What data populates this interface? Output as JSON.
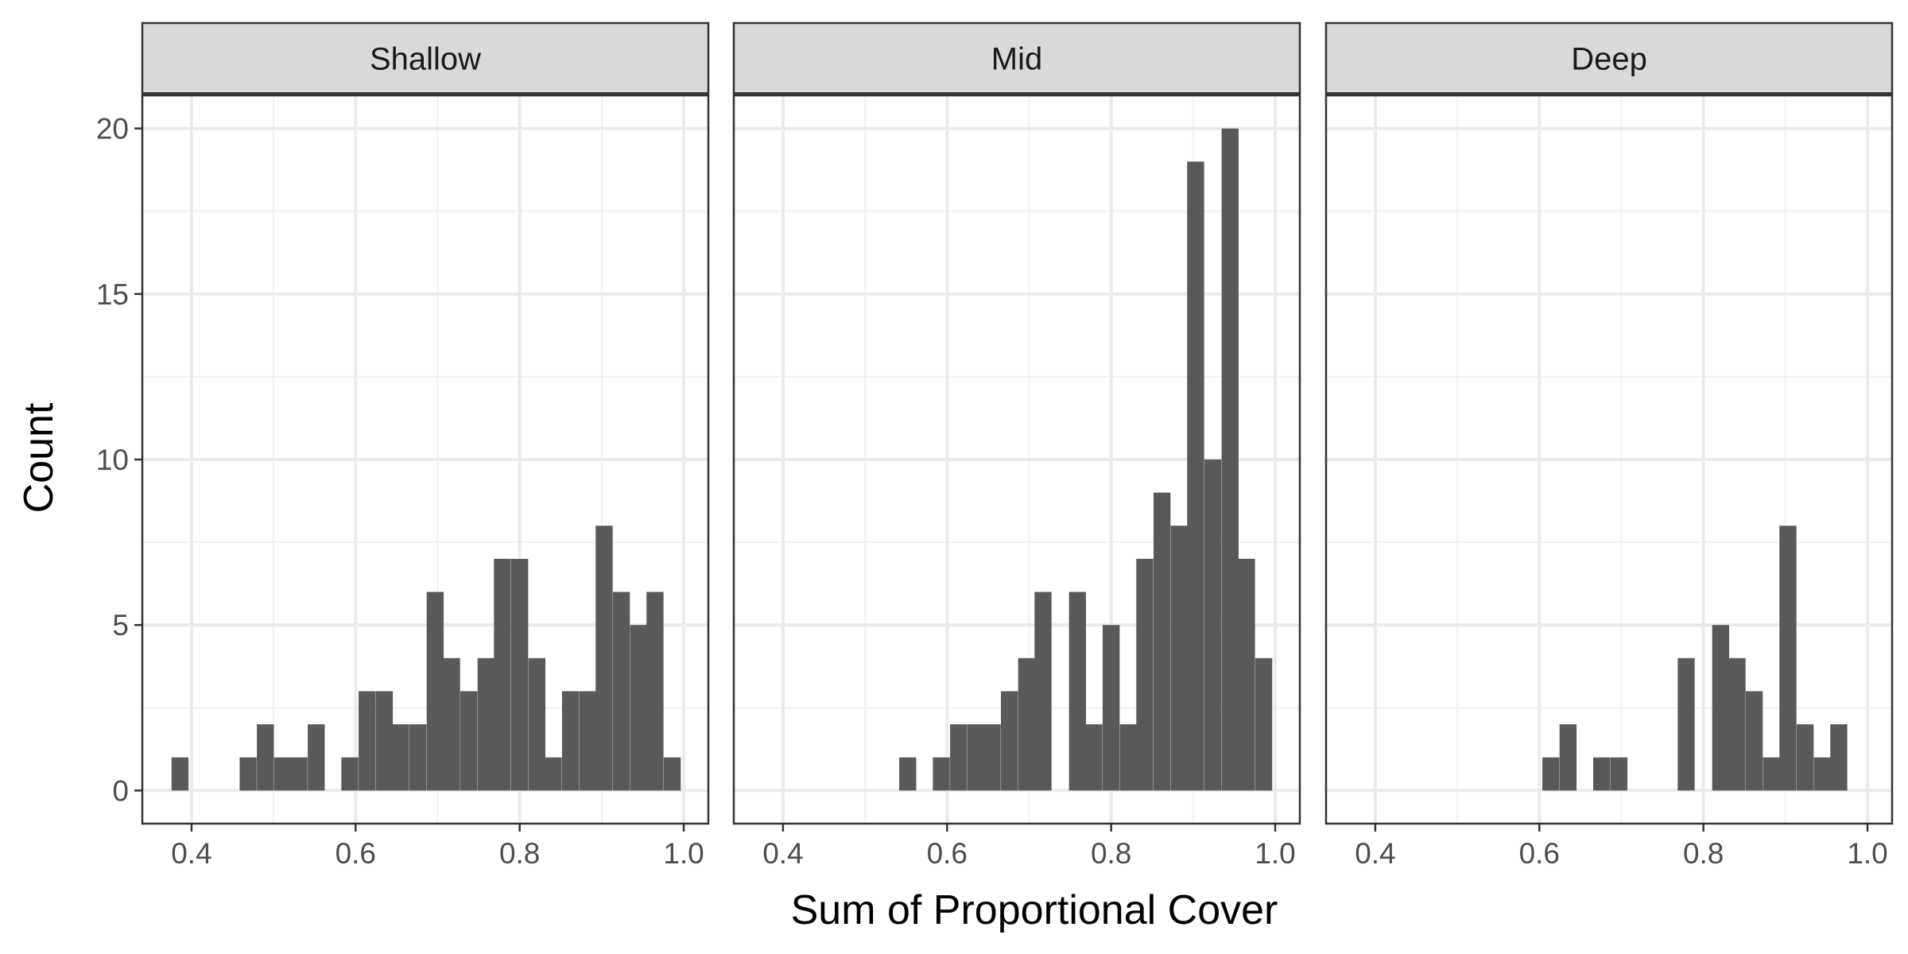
{
  "chart_data": {
    "type": "bar",
    "xlabel": "Sum of Proportional Cover",
    "ylabel": "Count",
    "x_range": [
      0.34,
      1.03
    ],
    "y_range": [
      -1,
      21
    ],
    "x_ticks": [
      0.4,
      0.6,
      0.8,
      1.0
    ],
    "x_tick_labels": [
      "0.4",
      "0.6",
      "0.8",
      "1.0"
    ],
    "y_ticks": [
      0,
      5,
      10,
      15,
      20
    ],
    "y_tick_labels": [
      "0",
      "5",
      "10",
      "15",
      "20"
    ],
    "grid": true,
    "bar_color": "#595959",
    "bin_width": 0.0207,
    "panels": [
      {
        "name": "Shallow",
        "bins": [
          {
            "x": 0.386,
            "count": 1
          },
          {
            "x": 0.469,
            "count": 1
          },
          {
            "x": 0.49,
            "count": 2
          },
          {
            "x": 0.511,
            "count": 1
          },
          {
            "x": 0.531,
            "count": 1
          },
          {
            "x": 0.552,
            "count": 2
          },
          {
            "x": 0.593,
            "count": 1
          },
          {
            "x": 0.614,
            "count": 3
          },
          {
            "x": 0.635,
            "count": 3
          },
          {
            "x": 0.655,
            "count": 2
          },
          {
            "x": 0.676,
            "count": 2
          },
          {
            "x": 0.697,
            "count": 6
          },
          {
            "x": 0.717,
            "count": 4
          },
          {
            "x": 0.738,
            "count": 3
          },
          {
            "x": 0.759,
            "count": 4
          },
          {
            "x": 0.779,
            "count": 7
          },
          {
            "x": 0.8,
            "count": 7
          },
          {
            "x": 0.821,
            "count": 4
          },
          {
            "x": 0.841,
            "count": 1
          },
          {
            "x": 0.862,
            "count": 3
          },
          {
            "x": 0.883,
            "count": 3
          },
          {
            "x": 0.903,
            "count": 8
          },
          {
            "x": 0.924,
            "count": 6
          },
          {
            "x": 0.945,
            "count": 5
          },
          {
            "x": 0.965,
            "count": 6
          },
          {
            "x": 0.986,
            "count": 1
          }
        ]
      },
      {
        "name": "Mid",
        "bins": [
          {
            "x": 0.552,
            "count": 1
          },
          {
            "x": 0.593,
            "count": 1
          },
          {
            "x": 0.614,
            "count": 2
          },
          {
            "x": 0.635,
            "count": 2
          },
          {
            "x": 0.655,
            "count": 2
          },
          {
            "x": 0.676,
            "count": 3
          },
          {
            "x": 0.697,
            "count": 4
          },
          {
            "x": 0.717,
            "count": 6
          },
          {
            "x": 0.759,
            "count": 6
          },
          {
            "x": 0.779,
            "count": 2
          },
          {
            "x": 0.8,
            "count": 5
          },
          {
            "x": 0.821,
            "count": 2
          },
          {
            "x": 0.841,
            "count": 7
          },
          {
            "x": 0.862,
            "count": 9
          },
          {
            "x": 0.883,
            "count": 8
          },
          {
            "x": 0.903,
            "count": 19
          },
          {
            "x": 0.924,
            "count": 10
          },
          {
            "x": 0.945,
            "count": 20
          },
          {
            "x": 0.965,
            "count": 7
          },
          {
            "x": 0.986,
            "count": 4
          }
        ]
      },
      {
        "name": "Deep",
        "bins": [
          {
            "x": 0.614,
            "count": 1
          },
          {
            "x": 0.635,
            "count": 2
          },
          {
            "x": 0.676,
            "count": 1
          },
          {
            "x": 0.697,
            "count": 1
          },
          {
            "x": 0.779,
            "count": 4
          },
          {
            "x": 0.821,
            "count": 5
          },
          {
            "x": 0.841,
            "count": 4
          },
          {
            "x": 0.862,
            "count": 3
          },
          {
            "x": 0.883,
            "count": 1
          },
          {
            "x": 0.903,
            "count": 8
          },
          {
            "x": 0.924,
            "count": 2
          },
          {
            "x": 0.945,
            "count": 1
          },
          {
            "x": 0.965,
            "count": 2
          }
        ]
      }
    ]
  }
}
